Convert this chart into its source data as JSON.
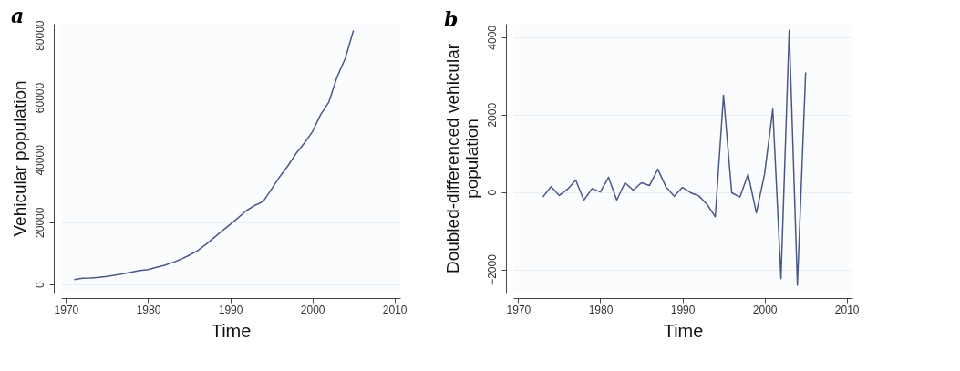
{
  "chart_data": [
    {
      "type": "line",
      "title": "a",
      "xlabel": "Time",
      "ylabel": "Vehicular population",
      "color": "#4a5888",
      "grid": "y",
      "marker": "none",
      "x": [
        1971,
        1972,
        1973,
        1974,
        1975,
        1976,
        1977,
        1978,
        1979,
        1980,
        1981,
        1982,
        1983,
        1984,
        1985,
        1986,
        1987,
        1988,
        1989,
        1990,
        1991,
        1992,
        1993,
        1994,
        1995,
        1996,
        1997,
        1998,
        1999,
        2000,
        2001,
        2002,
        2003,
        2004,
        2005
      ],
      "values": [
        1600,
        2000,
        2100,
        2300,
        2600,
        3000,
        3500,
        4000,
        4500,
        4800,
        5500,
        6200,
        7100,
        8100,
        9400,
        10800,
        12800,
        15000,
        17200,
        19300,
        21500,
        23800,
        25400,
        26600,
        30500,
        34500,
        38000,
        42000,
        45300,
        49000,
        54500,
        58500,
        66500,
        72500,
        81500
      ],
      "xlim": [
        1969.4,
        2010.7
      ],
      "xticks": [
        1970,
        1980,
        1990,
        2000,
        2010
      ],
      "ylim": [
        -2600,
        83700
      ],
      "yticks": [
        0,
        20000,
        40000,
        60000,
        80000
      ]
    },
    {
      "type": "line",
      "title": "b",
      "xlabel": "Time",
      "ylabel": "Doubled-differenced vehicular population",
      "color": "#4a5888",
      "grid": "y",
      "marker": "none",
      "x": [
        1973,
        1974,
        1975,
        1976,
        1977,
        1978,
        1979,
        1980,
        1981,
        1982,
        1983,
        1984,
        1985,
        1986,
        1987,
        1988,
        1989,
        1990,
        1991,
        1992,
        1993,
        1994,
        1995,
        1996,
        1997,
        1998,
        1999,
        2000,
        2001,
        2002,
        2003,
        2004,
        2005
      ],
      "values": [
        -130,
        140,
        -90,
        70,
        310,
        -210,
        90,
        0,
        380,
        -210,
        240,
        50,
        240,
        170,
        590,
        130,
        -110,
        120,
        -20,
        -100,
        -320,
        -640,
        2500,
        -20,
        -130,
        460,
        -540,
        460,
        2140,
        -2240,
        4180,
        -2410,
        3090
      ],
      "xlim": [
        1969.4,
        2010.7
      ],
      "xticks": [
        1970,
        1980,
        1990,
        2000,
        2010
      ],
      "ylim": [
        -2600,
        4350
      ],
      "yticks": [
        -2000,
        0,
        2000,
        4000
      ]
    }
  ]
}
